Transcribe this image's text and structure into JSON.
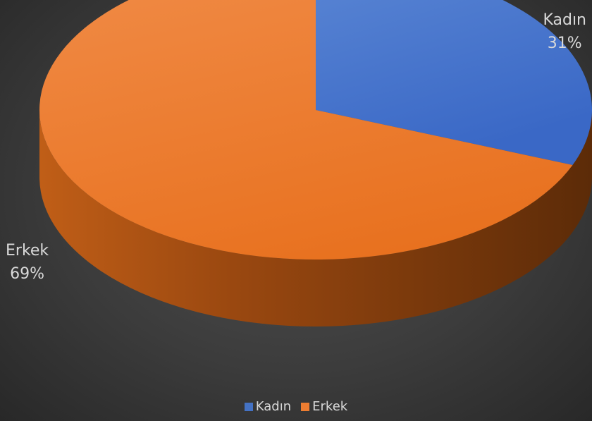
{
  "chart_data": {
    "type": "pie",
    "categories": [
      "Kadın",
      "Erkek"
    ],
    "values": [
      31,
      69
    ],
    "value_labels": [
      "31%",
      "69%"
    ],
    "colors": [
      "#4472c4",
      "#ed7d31"
    ],
    "legend_position": "bottom",
    "style": "3d"
  }
}
